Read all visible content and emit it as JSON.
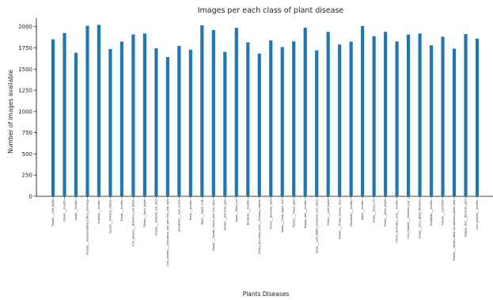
{
  "chart_data": {
    "type": "bar",
    "title": "Images per each class of plant disease",
    "xlabel": "Plants Diseases",
    "ylabel": "Number of images available",
    "ylim": [
      0,
      2100
    ],
    "yticks": [
      0,
      250,
      500,
      750,
      1000,
      1250,
      1500,
      1750,
      2000
    ],
    "grid": false,
    "color": "#1f77b4",
    "categories": [
      "Tomato___Late_blight",
      "Tomato___healthy",
      "Grape___healthy",
      "Orange___Haunglongbing_(Citrus_greening)",
      "Soybean___healthy",
      "Squash___Powdery_mildew",
      "Potato___healthy",
      "Corn_(maize)___Northern_Leaf_Blight",
      "Tomato___Early_blight",
      "Tomato___Septoria_leaf_spot",
      "Corn_(maize)___Cercospora_leaf_spot Gray_leaf_spot",
      "Strawberry___Leaf_scorch",
      "Peach___healthy",
      "Apple___Apple_scab",
      "Tomato___Tomato_Yellow_Leaf_Curl_Virus",
      "Tomato___Bacterial_spot",
      "Apple___Black_rot",
      "Blueberry___healthy",
      "Cherry_(including_sour)___Powdery_mildew",
      "Peach___Bacterial_spot",
      "Apple___Cedar_apple_rust",
      "Tomato___Target_Spot",
      "Pepper,_bell___healthy",
      "Grape___Leaf_blight_(Isariopsis_Leaf_Spot)",
      "Potato___Late_blight",
      "Tomato___Tomato_mosaic_virus",
      "Strawberry___healthy",
      "Apple___healthy",
      "Grape___Black_rot",
      "Potato___Early_blight",
      "Cherry_(including_sour)___healthy",
      "Corn_(maize)___Common_rust_",
      "Grape___Esca_(Black_Measles)",
      "Raspberry___healthy",
      "Tomato___Leaf_Mold",
      "Tomato___Spider_mites Two-spotted_spider_mite",
      "Pepper,_bell___Bacterial_spot",
      "Corn_(maize)___healthy"
    ],
    "values": [
      1851,
      1926,
      1692,
      2010,
      2022,
      1736,
      1824,
      1908,
      1920,
      1745,
      1642,
      1774,
      1728,
      2016,
      1961,
      1702,
      1987,
      1816,
      1683,
      1838,
      1760,
      1827,
      1988,
      1722,
      1939,
      1790,
      1824,
      2008,
      1888,
      1939,
      1826,
      1907,
      1920,
      1781,
      1882,
      1741,
      1913,
      1859
    ]
  }
}
